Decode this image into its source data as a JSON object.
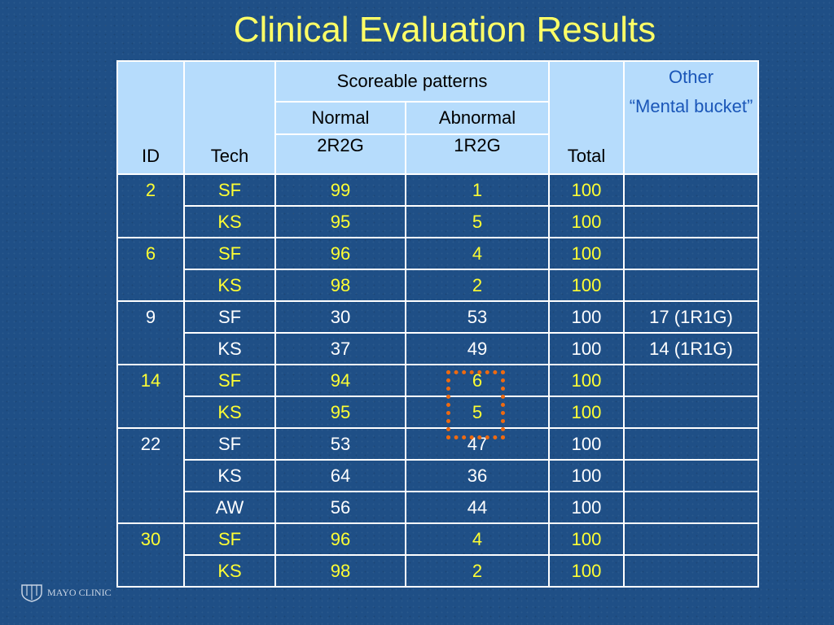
{
  "title": "Clinical Evaluation Results",
  "table": {
    "headers": {
      "id": "ID",
      "tech": "Tech",
      "scoreable": "Scoreable patterns",
      "normal": "Normal",
      "normal_sub": "2R2G",
      "abnormal": "Abnormal",
      "abnormal_sub": "1R2G",
      "total": "Total",
      "other": "Other",
      "other_sub": "“Mental bucket”"
    },
    "rows": [
      {
        "id": "2",
        "tech": "SF",
        "normal": "99",
        "abnormal": "1",
        "total": "100",
        "other": "",
        "highlight": true
      },
      {
        "id": "",
        "tech": "KS",
        "normal": "95",
        "abnormal": "5",
        "total": "100",
        "other": "",
        "highlight": true
      },
      {
        "id": "6",
        "tech": "SF",
        "normal": "96",
        "abnormal": "4",
        "total": "100",
        "other": "",
        "highlight": true
      },
      {
        "id": "",
        "tech": "KS",
        "normal": "98",
        "abnormal": "2",
        "total": "100",
        "other": "",
        "highlight": true
      },
      {
        "id": "9",
        "tech": "SF",
        "normal": "30",
        "abnormal": "53",
        "total": "100",
        "other": "17 (1R1G)",
        "highlight": false
      },
      {
        "id": "",
        "tech": "KS",
        "normal": "37",
        "abnormal": "49",
        "total": "100",
        "other": "14 (1R1G)",
        "highlight": false
      },
      {
        "id": "14",
        "tech": "SF",
        "normal": "94",
        "abnormal": "6",
        "total": "100",
        "other": "",
        "highlight": true
      },
      {
        "id": "",
        "tech": "KS",
        "normal": "95",
        "abnormal": "5",
        "total": "100",
        "other": "",
        "highlight": true
      },
      {
        "id": "22",
        "tech": "SF",
        "normal": "53",
        "abnormal": "47",
        "total": "100",
        "other": "",
        "highlight": false
      },
      {
        "id": "",
        "tech": "KS",
        "normal": "64",
        "abnormal": "36",
        "total": "100",
        "other": "",
        "highlight": false
      },
      {
        "id": "",
        "tech": "AW",
        "normal": "56",
        "abnormal": "44",
        "total": "100",
        "other": "",
        "highlight": false
      },
      {
        "id": "30",
        "tech": "SF",
        "normal": "96",
        "abnormal": "4",
        "total": "100",
        "other": "",
        "highlight": true
      },
      {
        "id": "",
        "tech": "KS",
        "normal": "98",
        "abnormal": "2",
        "total": "100",
        "other": "",
        "highlight": true
      }
    ]
  },
  "logo": {
    "text": "MAYO CLINIC",
    "icon": "mayo-shield-icon"
  },
  "colors": {
    "background": "#1f4f86",
    "title": "#ffff66",
    "header_bg": "#b6dcfc",
    "highlight_text": "#ffff33",
    "normal_text": "#ffffff",
    "callout_box": "#ee6a10"
  }
}
